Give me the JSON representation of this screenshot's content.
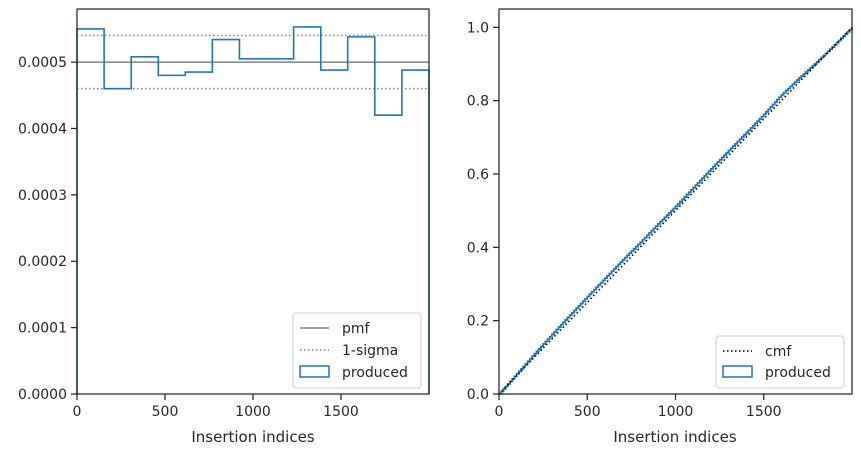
{
  "chart_data": [
    {
      "type": "line",
      "xlabel": "Insertion indices",
      "ylabel": "",
      "xlim": [
        0,
        2000
      ],
      "ylim": [
        0,
        0.00058
      ],
      "xticks": [
        0,
        500,
        1000,
        1500
      ],
      "xtick_labels": [
        "0",
        "500",
        "1000",
        "1500"
      ],
      "yticks": [
        0,
        0.0001,
        0.0002,
        0.0003,
        0.0004,
        0.0005
      ],
      "ytick_labels": [
        "0.0000",
        "0.0001",
        "0.0002",
        "0.0003",
        "0.0004",
        "0.0005"
      ],
      "grid": false,
      "legend_position": "lower-right",
      "pmf": 0.0005,
      "sigma_band": [
        0.00046,
        0.00054
      ],
      "histogram_edges": [
        0,
        154,
        308,
        462,
        615,
        769,
        923,
        1077,
        1231,
        1385,
        1538,
        1692,
        1846,
        2000
      ],
      "histogram_values": [
        0.00055,
        0.00046,
        0.000508,
        0.00048,
        0.000485,
        0.000534,
        0.000505,
        0.000505,
        0.000553,
        0.000488,
        0.000538,
        0.00042,
        0.000488
      ],
      "legend": [
        {
          "label": "pmf",
          "style": "solid",
          "color": "#808080"
        },
        {
          "label": "1-sigma",
          "style": "dotted",
          "color": "#808080"
        },
        {
          "label": "produced",
          "style": "patch",
          "color": "#1f77b4"
        }
      ]
    },
    {
      "type": "line",
      "xlabel": "Insertion indices",
      "ylabel": "",
      "xlim": [
        0,
        2000
      ],
      "ylim": [
        0,
        1.05
      ],
      "xticks": [
        0,
        500,
        1000,
        1500
      ],
      "xtick_labels": [
        "0",
        "500",
        "1000",
        "1500"
      ],
      "yticks": [
        0,
        0.2,
        0.4,
        0.6,
        0.8,
        1.0
      ],
      "ytick_labels": [
        "0.0",
        "0.2",
        "0.4",
        "0.6",
        "0.8",
        "1.0"
      ],
      "grid": false,
      "legend_position": "lower-right",
      "cmf": {
        "x": [
          0,
          2000
        ],
        "y": [
          0,
          1
        ]
      },
      "produced_cdf": {
        "x": [
          0,
          100,
          200,
          300,
          400,
          500,
          600,
          700,
          800,
          900,
          1000,
          1100,
          1200,
          1300,
          1400,
          1500,
          1600,
          1700,
          1800,
          1900,
          2000
        ],
        "y": [
          0,
          0.055,
          0.11,
          0.163,
          0.215,
          0.266,
          0.316,
          0.366,
          0.414,
          0.464,
          0.512,
          0.563,
          0.614,
          0.664,
          0.713,
          0.763,
          0.816,
          0.862,
          0.906,
          0.952,
          1.0
        ]
      },
      "legend": [
        {
          "label": "cmf",
          "style": "dotted",
          "color": "#000000"
        },
        {
          "label": "produced",
          "style": "patch",
          "color": "#1f77b4"
        }
      ]
    }
  ]
}
